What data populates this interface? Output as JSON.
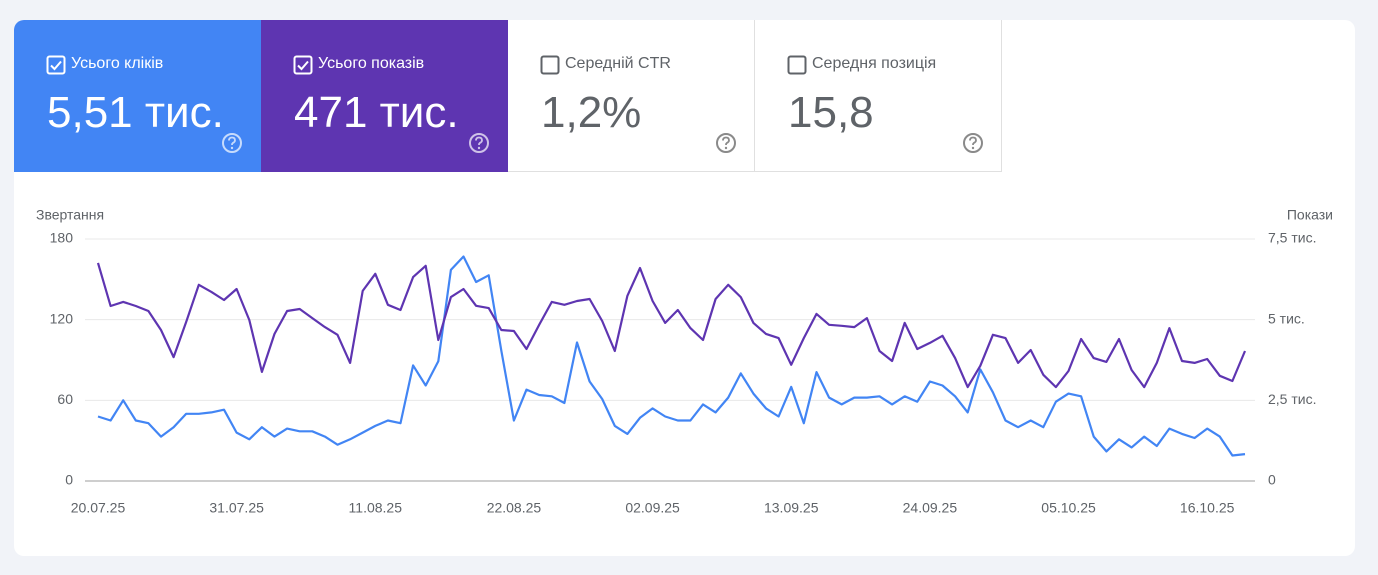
{
  "metrics": [
    {
      "label": "Усього кліків",
      "value": "5,51 тис.",
      "checked": true,
      "color": "#4285f4"
    },
    {
      "label": "Усього показів",
      "value": "471 тис.",
      "checked": true,
      "color": "#5e35b1"
    },
    {
      "label": "Середній CTR",
      "value": "1,2%",
      "checked": false,
      "color": "#ffffff"
    },
    {
      "label": "Середня позиція",
      "value": "15,8",
      "checked": false,
      "color": "#ffffff"
    }
  ],
  "chart_data": {
    "type": "line",
    "y_label": "Звертання",
    "y2_label": "Покази",
    "categories": [
      "20.07.25",
      null,
      null,
      null,
      null,
      null,
      null,
      null,
      null,
      null,
      null,
      "31.07.25",
      null,
      null,
      null,
      null,
      null,
      null,
      null,
      null,
      null,
      null,
      "11.08.25",
      null,
      null,
      null,
      null,
      null,
      null,
      null,
      null,
      null,
      null,
      "22.08.25",
      null,
      null,
      null,
      null,
      null,
      null,
      null,
      null,
      null,
      null,
      "02.09.25",
      null,
      null,
      null,
      null,
      null,
      null,
      null,
      null,
      null,
      null,
      "13.09.25",
      null,
      null,
      null,
      null,
      null,
      null,
      null,
      null,
      null,
      null,
      "24.09.25",
      null,
      null,
      null,
      null,
      null,
      null,
      null,
      null,
      null,
      null,
      "05.10.25",
      null,
      null,
      null,
      null,
      null,
      null,
      null,
      null,
      null,
      null,
      "16.10.25",
      null,
      null,
      null
    ],
    "ylim": [
      0,
      180
    ],
    "yticks": [
      0,
      60,
      120,
      180
    ],
    "y2lim": [
      0,
      7500
    ],
    "y2ticks": [
      0,
      {
        "value": 2500,
        "label": "2,5 тис."
      },
      {
        "value": 5000,
        "label": "5 тис."
      },
      {
        "value": 7500,
        "label": "7,5 тис."
      }
    ],
    "grid": true,
    "series": [
      {
        "color": "#4285f4",
        "values": [
          48,
          45,
          60,
          45,
          43,
          33,
          40,
          50,
          50,
          51,
          53,
          36,
          31,
          40,
          33,
          39,
          37,
          37,
          33,
          27,
          31,
          36,
          41,
          45,
          43,
          86,
          71,
          89,
          157,
          167,
          148,
          153,
          97,
          45,
          68,
          64,
          63,
          58,
          103,
          74,
          61,
          41,
          35,
          47,
          54,
          48,
          45,
          45,
          57,
          51,
          62,
          80,
          65,
          54,
          48,
          70,
          43,
          81,
          62,
          57,
          62,
          62,
          63,
          57,
          63,
          59,
          74,
          71,
          63,
          51,
          83,
          66,
          45,
          40,
          45,
          40,
          59,
          65,
          63,
          33,
          22,
          31,
          25,
          33,
          26,
          39,
          35,
          32,
          39,
          33,
          19,
          20
        ]
      },
      {
        "color": "#5e35b1",
        "axis": "y2",
        "values": [
          6760,
          5425,
          5550,
          5425,
          5270,
          4680,
          3840,
          4930,
          6080,
          5860,
          5610,
          5950,
          4990,
          3380,
          4560,
          5270,
          5330,
          5050,
          4770,
          4530,
          3660,
          5890,
          6420,
          5460,
          5300,
          6320,
          6670,
          4370,
          5700,
          5950,
          5430,
          5360,
          4680,
          4650,
          4090,
          4840,
          5550,
          5460,
          5580,
          5640,
          4960,
          4030,
          5740,
          6600,
          5580,
          4900,
          5300,
          4740,
          4370,
          5640,
          6080,
          5700,
          4900,
          4560,
          4430,
          3600,
          4430,
          5180,
          4840,
          4810,
          4770,
          5050,
          4030,
          3720,
          4900,
          4090,
          4280,
          4500,
          3810,
          2910,
          3570,
          4530,
          4430,
          3660,
          4060,
          3290,
          2910,
          3410,
          4400,
          3810,
          3690,
          4400,
          3440,
          2910,
          3660,
          4740,
          3720,
          3660,
          3780,
          3260,
          3100,
          4030
        ]
      }
    ]
  }
}
